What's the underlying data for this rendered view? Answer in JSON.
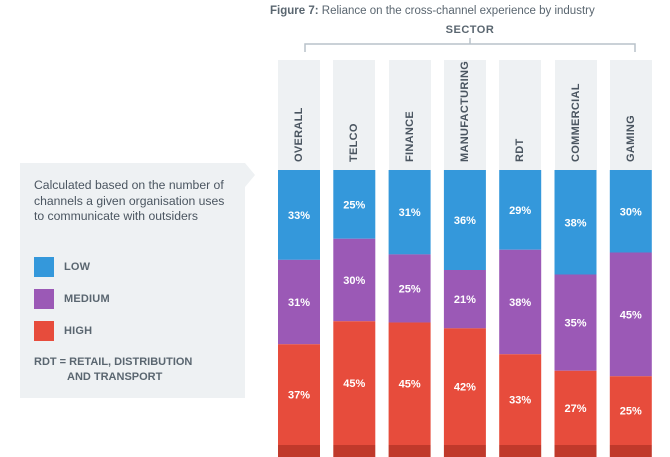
{
  "figure": {
    "label": "Figure 7:",
    "title": "Reliance on the cross-channel experience by industry",
    "sector_label": "SECTOR"
  },
  "info": {
    "note": "Calculated based on the number of channels a given organisation uses to communicate with outsiders",
    "rdt_line1": "RDT = RETAIL, DISTRIBUTION",
    "rdt_line2": "AND TRANSPORT"
  },
  "colors": {
    "low": "#3498db",
    "medium": "#9b59b6",
    "high": "#e74c3c",
    "high_dark": "#c0392b",
    "header_bg": "#eef1f3"
  },
  "chart_data": {
    "type": "bar",
    "stacked": true,
    "percent": true,
    "categories": [
      "OVERALL",
      "TELCO",
      "FINANCE",
      "MANUFACTURING",
      "RDT",
      "COMMERCIAL",
      "GAMING"
    ],
    "series": [
      {
        "name": "LOW",
        "values": [
          33,
          25,
          31,
          36,
          29,
          38,
          30
        ]
      },
      {
        "name": "MEDIUM",
        "values": [
          31,
          30,
          25,
          21,
          38,
          35,
          45
        ]
      },
      {
        "name": "HIGH",
        "values": [
          37,
          45,
          45,
          42,
          33,
          27,
          25
        ]
      }
    ],
    "legend": "left"
  }
}
